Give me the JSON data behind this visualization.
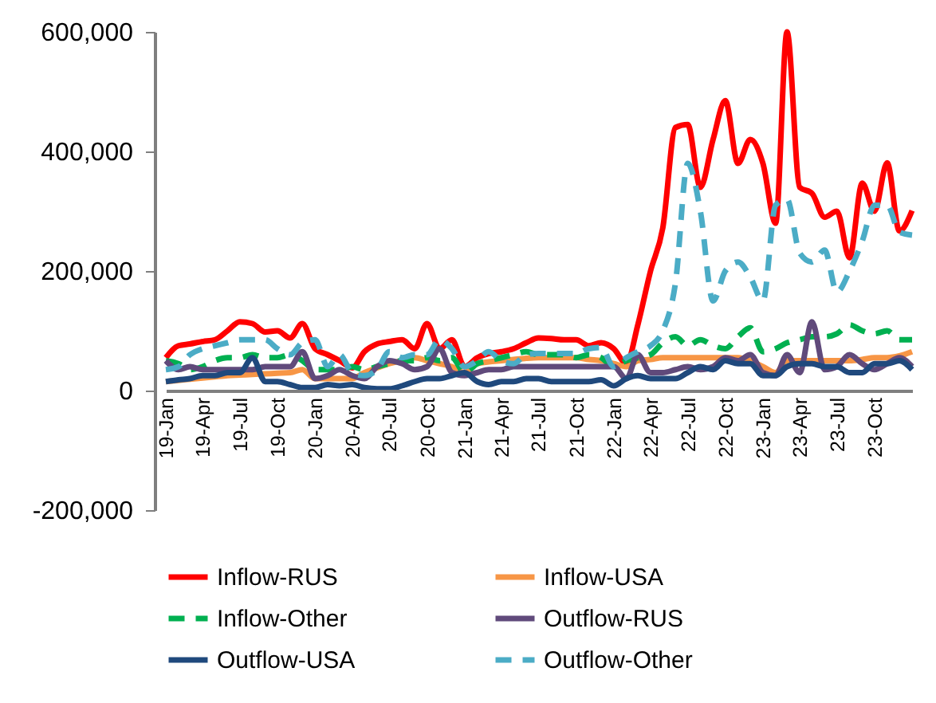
{
  "chart_data": {
    "type": "line",
    "x": [
      "2019-01",
      "2019-02",
      "2019-03",
      "2019-04",
      "2019-05",
      "2019-06",
      "2019-07",
      "2019-08",
      "2019-09",
      "2019-10",
      "2019-11",
      "2019-12",
      "2020-01",
      "2020-02",
      "2020-03",
      "2020-04",
      "2020-05",
      "2020-06",
      "2020-07",
      "2020-08",
      "2020-09",
      "2020-10",
      "2020-11",
      "2020-12",
      "2021-01",
      "2021-02",
      "2021-03",
      "2021-04",
      "2021-05",
      "2021-06",
      "2021-07",
      "2021-08",
      "2021-09",
      "2021-10",
      "2021-11",
      "2021-12",
      "2022-01",
      "2022-02",
      "2022-03",
      "2022-04",
      "2022-05",
      "2022-06",
      "2022-07",
      "2022-08",
      "2022-09",
      "2022-10",
      "2022-11",
      "2022-12",
      "2023-01",
      "2023-02",
      "2023-03",
      "2023-04",
      "2023-05",
      "2023-06",
      "2023-07",
      "2023-08",
      "2023-09",
      "2023-10",
      "2023-11",
      "2023-12",
      "2024-01"
    ],
    "series": [
      {
        "name": "Inflow-RUS",
        "color": "#ff0000",
        "line_style": "solid",
        "values": [
          55000,
          75000,
          78000,
          82000,
          85000,
          100000,
          115000,
          112000,
          98000,
          100000,
          88000,
          112000,
          70000,
          60000,
          50000,
          38000,
          65000,
          78000,
          82000,
          85000,
          70000,
          112000,
          70000,
          85000,
          40000,
          55000,
          62000,
          65000,
          70000,
          80000,
          88000,
          87000,
          85000,
          85000,
          75000,
          80000,
          70000,
          45000,
          110000,
          200000,
          272000,
          440000,
          445000,
          340000,
          420000,
          485000,
          380000,
          420000,
          380000,
          280000,
          600000,
          340000,
          330000,
          290000,
          300000,
          222000,
          347000,
          300000,
          381000,
          267000,
          301000
        ]
      },
      {
        "name": "Inflow-USA",
        "color": "#f79646",
        "line_style": "solid",
        "values": [
          15000,
          17000,
          19000,
          21000,
          23000,
          25000,
          26000,
          27000,
          28000,
          29000,
          30000,
          35000,
          20000,
          20000,
          20000,
          20000,
          30000,
          38000,
          45000,
          50000,
          55000,
          50000,
          45000,
          40000,
          30000,
          45000,
          48000,
          50000,
          52000,
          54000,
          55000,
          55000,
          55000,
          55000,
          52000,
          50000,
          45000,
          40000,
          50000,
          52000,
          55000,
          55000,
          55000,
          55000,
          55000,
          55000,
          55000,
          50000,
          40000,
          30000,
          50000,
          50000,
          50000,
          50000,
          50000,
          50000,
          52000,
          55000,
          55000,
          58000,
          65000
        ]
      },
      {
        "name": "Inflow-Other",
        "color": "#00b050",
        "line_style": "dashed",
        "values": [
          50000,
          45000,
          35000,
          40000,
          50000,
          55000,
          55000,
          60000,
          55000,
          55000,
          60000,
          50000,
          35000,
          35000,
          35000,
          40000,
          35000,
          40000,
          45000,
          50000,
          50000,
          55000,
          50000,
          55000,
          30000,
          45000,
          50000,
          55000,
          60000,
          65000,
          60000,
          60000,
          60000,
          55000,
          60000,
          55000,
          40000,
          50000,
          55000,
          60000,
          80000,
          90000,
          75000,
          85000,
          75000,
          70000,
          90000,
          105000,
          65000,
          70000,
          80000,
          85000,
          90000,
          90000,
          95000,
          110000,
          100000,
          95000,
          100000,
          85000,
          85000
        ]
      },
      {
        "name": "Outflow-RUS",
        "color": "#604a7b",
        "line_style": "solid",
        "values": [
          50000,
          35000,
          40000,
          35000,
          35000,
          35000,
          35000,
          35000,
          40000,
          40000,
          40000,
          65000,
          20000,
          25000,
          35000,
          25000,
          20000,
          40000,
          50000,
          45000,
          35000,
          40000,
          70000,
          30000,
          25000,
          30000,
          35000,
          35000,
          40000,
          40000,
          40000,
          40000,
          40000,
          40000,
          40000,
          40000,
          40000,
          20000,
          60000,
          30000,
          30000,
          35000,
          40000,
          35000,
          40000,
          55000,
          50000,
          60000,
          30000,
          25000,
          60000,
          30000,
          115000,
          35000,
          40000,
          60000,
          45000,
          35000,
          45000,
          55000,
          40000
        ]
      },
      {
        "name": "Outflow-USA",
        "color": "#1f497d",
        "line_style": "solid",
        "values": [
          15000,
          18000,
          20000,
          25000,
          25000,
          30000,
          30000,
          55000,
          15000,
          15000,
          10000,
          5000,
          5000,
          10000,
          8000,
          10000,
          5000,
          3000,
          3000,
          8000,
          15000,
          20000,
          20000,
          25000,
          30000,
          15000,
          10000,
          15000,
          15000,
          20000,
          20000,
          15000,
          15000,
          15000,
          15000,
          18000,
          8000,
          20000,
          25000,
          20000,
          20000,
          20000,
          30000,
          40000,
          35000,
          50000,
          45000,
          45000,
          25000,
          25000,
          40000,
          45000,
          45000,
          40000,
          40000,
          30000,
          30000,
          45000,
          45000,
          50000,
          35000
        ]
      },
      {
        "name": "Outflow-Other",
        "color": "#4bacc6",
        "line_style": "dashed",
        "values": [
          35000,
          40000,
          60000,
          70000,
          75000,
          80000,
          85000,
          85000,
          85000,
          70000,
          60000,
          80000,
          85000,
          40000,
          60000,
          30000,
          25000,
          35000,
          65000,
          55000,
          60000,
          60000,
          85000,
          70000,
          40000,
          50000,
          65000,
          50000,
          45000,
          60000,
          62000,
          62000,
          62000,
          62000,
          70000,
          72000,
          40000,
          55000,
          65000,
          75000,
          100000,
          180000,
          380000,
          300000,
          150000,
          200000,
          215000,
          190000,
          150000,
          310000,
          320000,
          230000,
          215000,
          235000,
          165000,
          200000,
          250000,
          310000,
          310000,
          265000,
          260000
        ]
      }
    ],
    "ylim": [
      -200000,
      600000
    ],
    "yticks": [
      {
        "value": -200000,
        "label": "-200,000"
      },
      0,
      {
        "value": 200000,
        "label": "200,000"
      },
      {
        "value": 400000,
        "label": "400,000"
      },
      {
        "value": 600000,
        "label": "600,000"
      }
    ],
    "xlim": [
      "2019-01",
      "2024-01"
    ],
    "xticks": [
      {
        "value": "2019-01",
        "label": "19-Jan"
      },
      {
        "value": "2019-04",
        "label": "19-Apr"
      },
      {
        "value": "2019-07",
        "label": "19-Jul"
      },
      {
        "value": "2019-10",
        "label": "19-Oct"
      },
      {
        "value": "2020-01",
        "label": "20-Jan"
      },
      {
        "value": "2020-04",
        "label": "20-Apr"
      },
      {
        "value": "2020-07",
        "label": "20-Jul"
      },
      {
        "value": "2020-10",
        "label": "20-Oct"
      },
      {
        "value": "2021-01",
        "label": "21-Jan"
      },
      {
        "value": "2021-04",
        "label": "21-Apr"
      },
      {
        "value": "2021-07",
        "label": "21-Jul"
      },
      {
        "value": "2021-10",
        "label": "21-Oct"
      },
      {
        "value": "2022-01",
        "label": "22-Jan"
      },
      {
        "value": "2022-04",
        "label": "22-Apr"
      },
      {
        "value": "2022-07",
        "label": "22-Jul"
      },
      {
        "value": "2022-10",
        "label": "22-Oct"
      },
      {
        "value": "2023-01",
        "label": "23-Jan"
      },
      {
        "value": "2023-04",
        "label": "23-Apr"
      },
      {
        "value": "2023-07",
        "label": "23-Jul"
      },
      {
        "value": "2023-10",
        "label": "23-Oct"
      }
    ],
    "grid": false,
    "legend": "bottom",
    "marker": "none"
  }
}
